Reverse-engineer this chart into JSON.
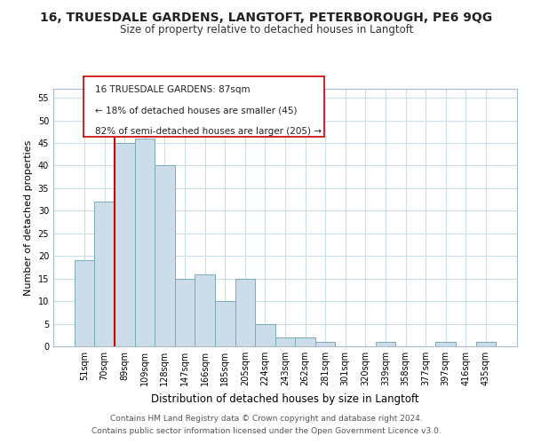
{
  "title_line1": "16, TRUESDALE GARDENS, LANGTOFT, PETERBOROUGH, PE6 9QG",
  "title_line2": "Size of property relative to detached houses in Langtoft",
  "xlabel": "Distribution of detached houses by size in Langtoft",
  "ylabel": "Number of detached properties",
  "footer_line1": "Contains HM Land Registry data © Crown copyright and database right 2024.",
  "footer_line2": "Contains public sector information licensed under the Open Government Licence v3.0.",
  "bar_labels": [
    "51sqm",
    "70sqm",
    "89sqm",
    "109sqm",
    "128sqm",
    "147sqm",
    "166sqm",
    "185sqm",
    "205sqm",
    "224sqm",
    "243sqm",
    "262sqm",
    "281sqm",
    "301sqm",
    "320sqm",
    "339sqm",
    "358sqm",
    "377sqm",
    "397sqm",
    "416sqm",
    "435sqm"
  ],
  "bar_values": [
    19,
    32,
    45,
    46,
    40,
    15,
    16,
    10,
    15,
    5,
    2,
    2,
    1,
    0,
    0,
    1,
    0,
    0,
    1,
    0,
    1
  ],
  "bar_color": "#ccdce8",
  "bar_edge_color": "#7aabb8",
  "reference_line_color": "#cc0000",
  "ylim": [
    0,
    57
  ],
  "yticks": [
    0,
    5,
    10,
    15,
    20,
    25,
    30,
    35,
    40,
    45,
    50,
    55
  ],
  "bg_color": "#ffffff",
  "grid_color": "#ccdde8",
  "title1_fontsize": 10,
  "title2_fontsize": 8.5,
  "ylabel_fontsize": 8,
  "xlabel_fontsize": 8.5,
  "tick_fontsize": 7,
  "footer_fontsize": 6.5
}
